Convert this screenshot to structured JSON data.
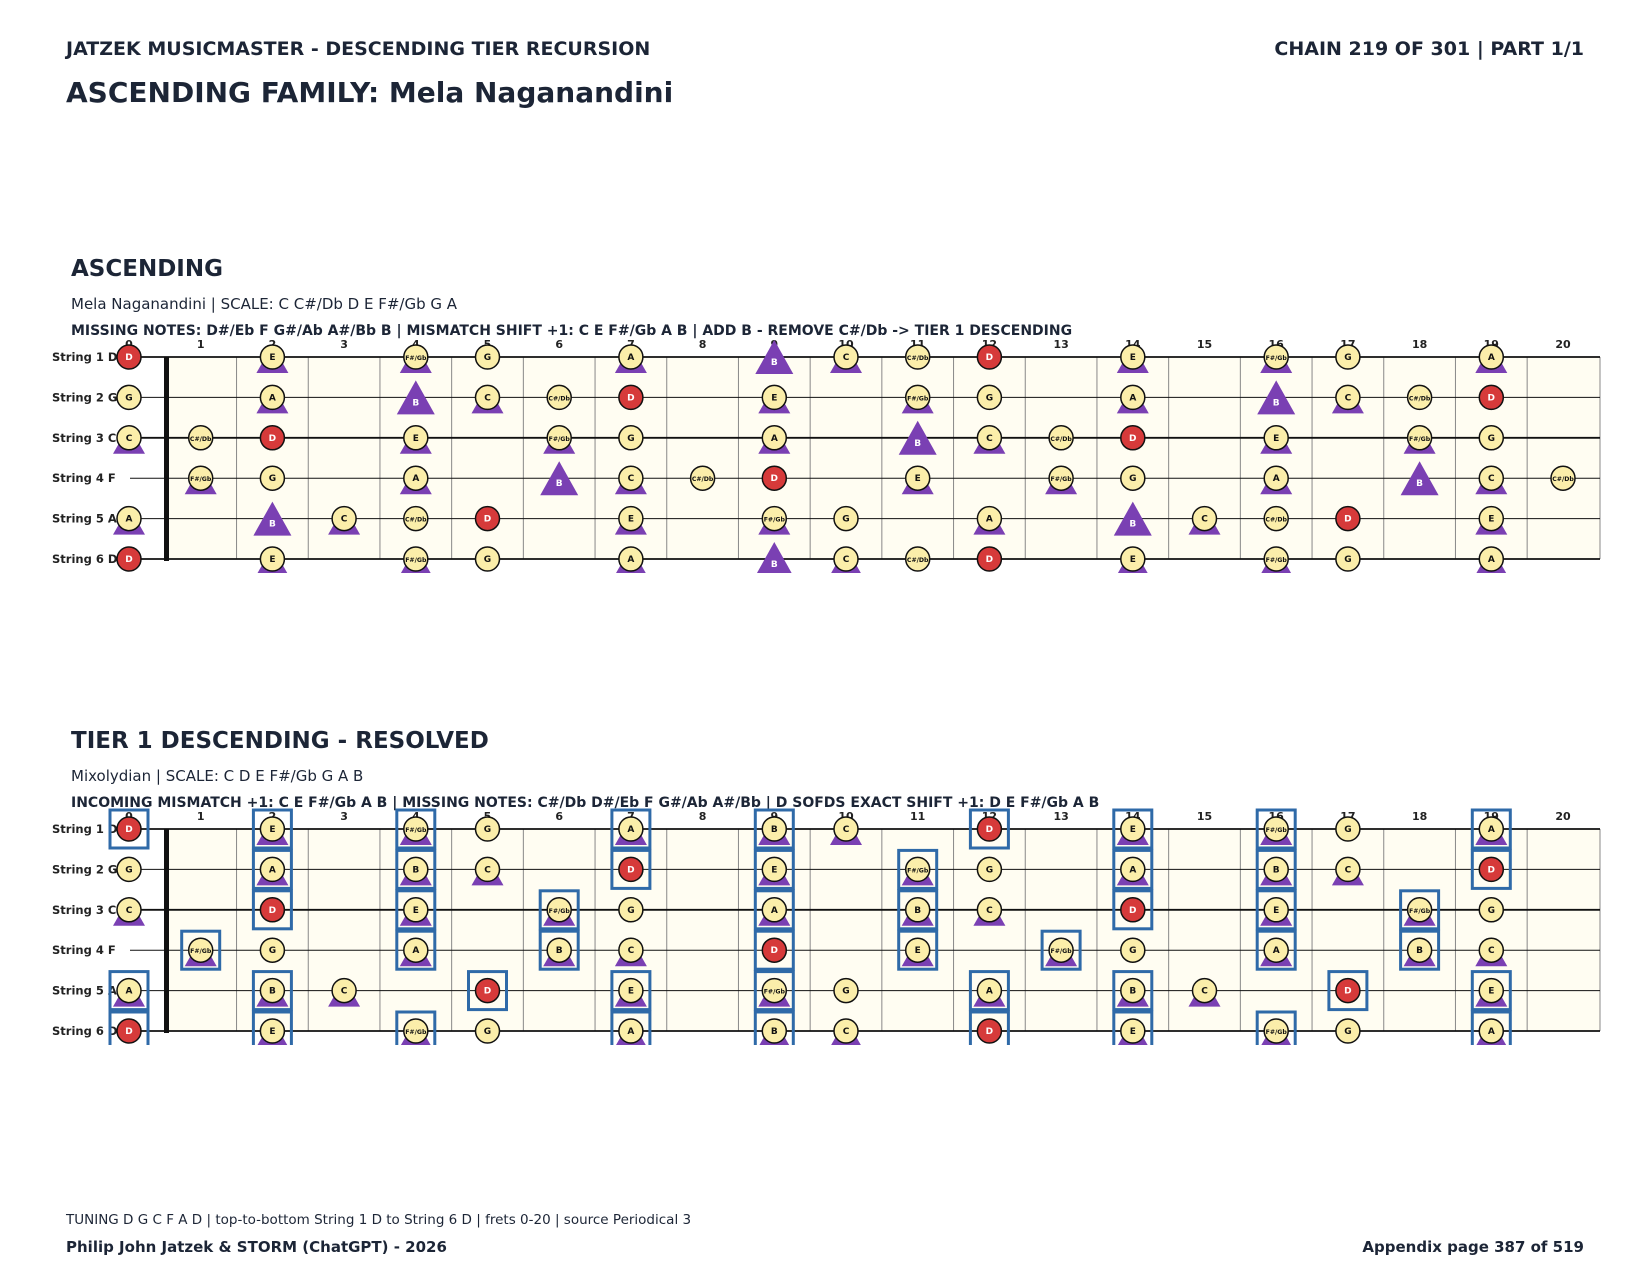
{
  "header": {
    "left": "JATZEK MUSICMASTER - DESCENDING TIER RECURSION",
    "right": "CHAIN 219 OF 301  |  PART 1/1",
    "family": "ASCENDING FAMILY: Mela Naganandini"
  },
  "colors": {
    "root_fill": "#d63a3a",
    "note_fill": "#fbeeaa",
    "board_fill": "#fffdf2",
    "triangle": "#7a40b3",
    "box": "#2f6aa8",
    "ink": "#1c2536"
  },
  "fret_numbers": [
    "0",
    "1",
    "2",
    "3",
    "4",
    "5",
    "6",
    "7",
    "8",
    "9",
    "10",
    "11",
    "12",
    "13",
    "14",
    "15",
    "16",
    "17",
    "18",
    "19",
    "20"
  ],
  "string_labels": [
    "String 1 D",
    "String 2 G",
    "String 3 C",
    "String 4 F",
    "String 5 A",
    "String 6 D"
  ],
  "sections": [
    {
      "title": "ASCENDING",
      "subtitle": "Mela Naganandini  |  SCALE: C C#/Db D E F#/Gb G A",
      "info": "MISSING NOTES: D#/Eb F G#/Ab A#/Bb B  |  MISMATCH SHIFT +1: C E F#/Gb A B  |  ADD B - REMOVE C#/Db -> TIER 1 DESCENDING",
      "root": "D",
      "circle_notes": [
        "C",
        "C#/Db",
        "D",
        "E",
        "F#/Gb",
        "G",
        "A"
      ],
      "triangle_notes": [
        "C",
        "E",
        "F#/Gb",
        "A",
        "B"
      ],
      "boxed_notes": []
    },
    {
      "title": "TIER 1 DESCENDING - RESOLVED",
      "subtitle": "Mixolydian  |  SCALE: C D E F#/Gb G A B",
      "info": "INCOMING MISMATCH +1: C E F#/Gb A B  |  MISSING NOTES: C#/Db D#/Eb F G#/Ab A#/Bb  |  D SOFDS EXACT SHIFT +1: D E F#/Gb A B",
      "root": "D",
      "circle_notes": [
        "C",
        "D",
        "E",
        "F#/Gb",
        "G",
        "A",
        "B"
      ],
      "triangle_notes": [
        "C",
        "E",
        "F#/Gb",
        "A",
        "B"
      ],
      "boxed_notes": [
        "D",
        "E",
        "F#/Gb",
        "A",
        "B"
      ]
    }
  ],
  "tuning": [
    "D",
    "G",
    "C",
    "F",
    "A",
    "D"
  ],
  "chromatic": [
    "C",
    "C#/Db",
    "D",
    "D#/Eb",
    "E",
    "F",
    "F#/Gb",
    "G",
    "G#/Ab",
    "A",
    "A#/Bb",
    "B"
  ],
  "footer": {
    "note": "TUNING D G C F A D | top-to-bottom String 1 D to String 6 D | frets 0-20 | source Periodical 3",
    "left": "Philip John Jatzek & STORM (ChatGPT) - 2026",
    "right": "Appendix page 387 of 519"
  }
}
